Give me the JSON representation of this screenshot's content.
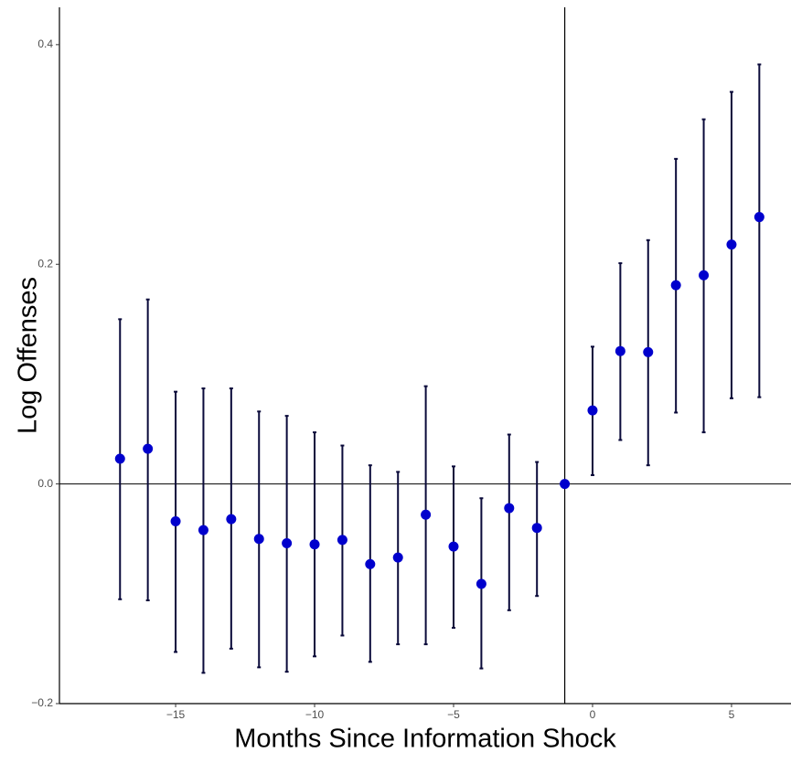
{
  "chart_data": {
    "type": "errorbar",
    "xlabel": "Months Since Information Shock",
    "ylabel": "Log Offenses",
    "x": [
      -17,
      -16,
      -15,
      -14,
      -13,
      -12,
      -11,
      -10,
      -9,
      -8,
      -7,
      -6,
      -5,
      -4,
      -3,
      -2,
      -1,
      0,
      1,
      2,
      3,
      4,
      5,
      6
    ],
    "values": [
      0.023,
      0.032,
      -0.034,
      -0.042,
      -0.032,
      -0.05,
      -0.054,
      -0.055,
      -0.051,
      -0.073,
      -0.067,
      -0.028,
      -0.057,
      -0.091,
      -0.022,
      -0.04,
      0,
      0.067,
      0.121,
      0.12,
      0.181,
      0.19,
      0.218,
      0.243
    ],
    "lower": [
      -0.105,
      -0.106,
      -0.153,
      -0.172,
      -0.15,
      -0.167,
      -0.171,
      -0.157,
      -0.138,
      -0.162,
      -0.146,
      -0.146,
      -0.131,
      -0.168,
      -0.115,
      -0.102,
      null,
      0.008,
      0.04,
      0.017,
      0.065,
      0.047,
      0.078,
      0.079
    ],
    "upper": [
      0.15,
      0.168,
      0.084,
      0.087,
      0.087,
      0.066,
      0.062,
      0.047,
      0.035,
      0.017,
      0.011,
      0.089,
      0.016,
      -0.013,
      0.045,
      0.02,
      null,
      0.125,
      0.201,
      0.222,
      0.296,
      0.332,
      0.357,
      0.382
    ],
    "color": "#0000cd",
    "errorbar_color": "#0a0a3a",
    "hline": 0,
    "vline": -1,
    "xlim": [
      -19.18,
      7.14
    ],
    "ylim": [
      -0.2,
      0.434
    ],
    "xticks": [
      {
        "value": -15,
        "label": "−15"
      },
      {
        "value": -10,
        "label": "−10"
      },
      {
        "value": -5,
        "label": "−5"
      },
      0,
      5
    ],
    "yticks": [
      {
        "value": -0.2,
        "label": "−0.2"
      },
      {
        "value": 0,
        "label": "0.0"
      },
      0.2,
      0.4
    ]
  }
}
